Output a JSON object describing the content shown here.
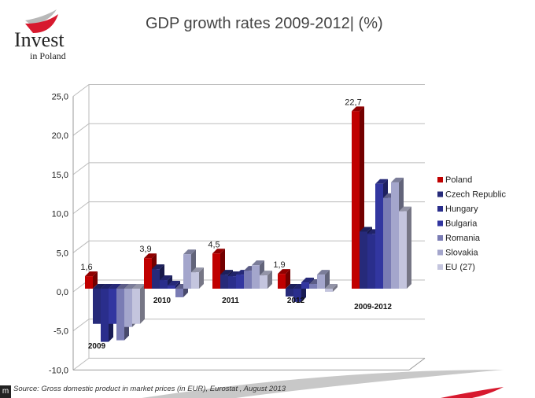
{
  "title": "GDP growth rates 2009-2012| (%)",
  "logo": {
    "line1": "Invest",
    "line2": "in Poland"
  },
  "source": "Source: Gross domestic product in market prices (in EUR), Eurostat , August 2013",
  "corner_label": "m",
  "chart_data": {
    "type": "bar",
    "title": "GDP growth rates 2009-2012| (%)",
    "categories": [
      "2009",
      "2010",
      "2011",
      "2012",
      "2009-2012"
    ],
    "ylim": [
      -10,
      25
    ],
    "yticks": [
      "-10,0",
      "-5,0",
      "0,0",
      "5,0",
      "10,0",
      "15,0",
      "20,0",
      "25,0"
    ],
    "grid": true,
    "legend_position": "right",
    "series": [
      {
        "name": "Poland",
        "color": "#c00000",
        "values": [
          1.6,
          3.9,
          4.5,
          1.9,
          22.7
        ]
      },
      {
        "name": "Czech Republic",
        "color": "#262a7a",
        "values": [
          -4.5,
          2.5,
          1.8,
          -1.0,
          7.3
        ]
      },
      {
        "name": "Hungary",
        "color": "#2a2e8c",
        "values": [
          -6.8,
          1.1,
          1.6,
          -1.7,
          7.0
        ]
      },
      {
        "name": "Bulgaria",
        "color": "#3236a0",
        "values": [
          -4.5,
          0.4,
          1.8,
          0.8,
          13.4
        ]
      },
      {
        "name": "Romania",
        "color": "#7a7cb4",
        "values": [
          -6.6,
          -1.1,
          2.3,
          0.6,
          11.6
        ]
      },
      {
        "name": "Slovakia",
        "color": "#a4a6cc",
        "values": [
          -4.9,
          4.4,
          3.0,
          1.8,
          13.6
        ]
      },
      {
        "name": "EU (27)",
        "color": "#c4c5de",
        "values": [
          -4.5,
          2.1,
          1.7,
          -0.4,
          9.9
        ]
      }
    ],
    "data_labels": {
      "Poland": [
        "1,6",
        "3,9",
        "4,5",
        "1,9",
        "22,7"
      ]
    }
  }
}
